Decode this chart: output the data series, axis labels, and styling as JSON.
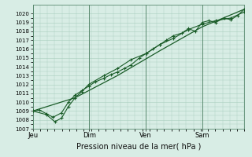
{
  "background_color": "#d8ede5",
  "grid_color": "#aacfbf",
  "line_color": "#1a5c28",
  "xlabel": "Pression niveau de la mer( hPa )",
  "ylim": [
    1007,
    1021
  ],
  "yticks": [
    1007,
    1008,
    1009,
    1010,
    1011,
    1012,
    1013,
    1014,
    1015,
    1016,
    1017,
    1018,
    1019,
    1020
  ],
  "day_labels": [
    "Jeu",
    "Dim",
    "Ven",
    "Sam"
  ],
  "day_positions": [
    0.0,
    0.333,
    0.667,
    1.0
  ],
  "xlim": [
    0.0,
    1.25
  ],
  "series1_x": [
    0.0,
    0.04,
    0.08,
    0.12,
    0.17,
    0.21,
    0.25,
    0.29,
    0.33,
    0.37,
    0.42,
    0.46,
    0.5,
    0.54,
    0.58,
    0.63,
    0.67,
    0.71,
    0.75,
    0.79,
    0.83,
    0.88,
    0.92,
    0.96,
    1.0,
    1.04,
    1.08,
    1.13,
    1.17,
    1.21,
    1.25
  ],
  "series1_y": [
    1009.0,
    1009.1,
    1008.7,
    1008.3,
    1008.8,
    1010.0,
    1010.8,
    1011.3,
    1011.8,
    1012.3,
    1012.7,
    1013.1,
    1013.4,
    1013.8,
    1014.2,
    1015.0,
    1015.5,
    1016.0,
    1016.5,
    1017.0,
    1017.5,
    1017.8,
    1018.3,
    1018.0,
    1019.0,
    1019.2,
    1019.0,
    1019.5,
    1019.3,
    1019.8,
    1020.5
  ],
  "series2_x": [
    0.0,
    0.08,
    0.13,
    0.17,
    0.21,
    0.25,
    0.29,
    0.33,
    0.42,
    0.5,
    0.58,
    0.67,
    0.75,
    0.83,
    0.92,
    1.0,
    1.08,
    1.17,
    1.25
  ],
  "series2_y": [
    1009.0,
    1008.6,
    1007.8,
    1008.2,
    1009.5,
    1010.5,
    1011.2,
    1012.0,
    1013.0,
    1013.8,
    1014.8,
    1015.5,
    1016.5,
    1017.2,
    1018.2,
    1018.8,
    1019.2,
    1019.5,
    1020.2
  ],
  "series3_x": [
    0.0,
    0.25,
    0.5,
    0.75,
    1.0,
    1.25
  ],
  "series3_y": [
    1009.0,
    1010.5,
    1013.0,
    1015.8,
    1018.5,
    1020.5
  ]
}
